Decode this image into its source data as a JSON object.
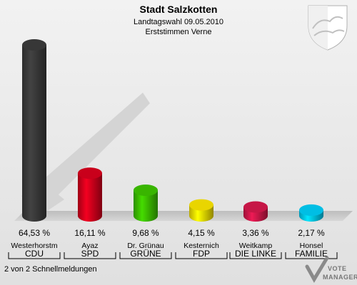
{
  "header": {
    "title": "Stadt Salzkotten",
    "subtitle": "Landtagswahl 09.05.2010",
    "subtitle2": "Erststimmen Verne"
  },
  "footer": {
    "status": "2 von 2 Schnellmeldungen",
    "logo_line1": "VOTE",
    "logo_line2": "MANAGER"
  },
  "chart_data": {
    "type": "bar",
    "categories": [
      "CDU",
      "SPD",
      "GRÜNE",
      "FDP",
      "DIE LINKE",
      "FAMILIE"
    ],
    "candidates": [
      "Westerhorstm",
      "Ayaz",
      "Dr. Grünau",
      "Kesternich",
      "Weitkamp",
      "Honsel"
    ],
    "values": [
      64.53,
      16.11,
      9.68,
      4.15,
      3.36,
      2.17
    ],
    "value_labels": [
      "64,53 %",
      "16,11 %",
      "9,68 %",
      "4,15 %",
      "3,36 %",
      "2,17 %"
    ],
    "colors": [
      "#3a3a3a",
      "#d4001c",
      "#3cbf00",
      "#f5e000",
      "#d0174a",
      "#00c8f0"
    ],
    "ylim": [
      0,
      64.53
    ]
  }
}
